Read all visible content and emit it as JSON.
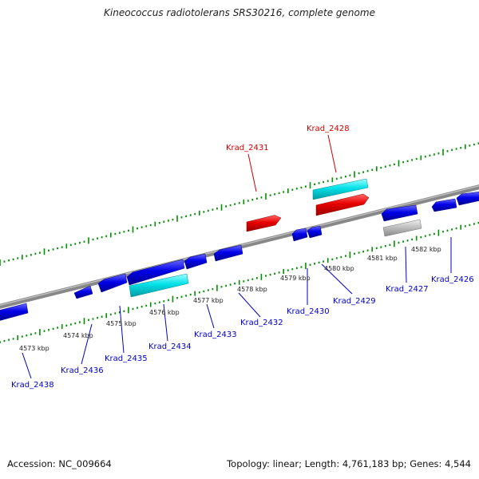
{
  "title": "Kineococcus radiotolerans SRS30216, complete genome",
  "footer": {
    "accession_label": "Accession:",
    "accession": "NC_009664",
    "topology_label": "Topology:",
    "topology": "linear",
    "length_label": "Length:",
    "length": "4,761,183 bp",
    "genes_label": "Genes:",
    "genes": "4,544"
  },
  "colors": {
    "forward_gene": "#e80000",
    "forward_gene_alt": "#00e0e8",
    "reverse_gene": "#0000e8",
    "reverse_gene_alt": "#00d0d8",
    "pseudo_gene": "#b8b8b8",
    "tick": "#009000",
    "backbone": "#808080",
    "label_forward": "#d00000",
    "label_reverse": "#0000c8"
  },
  "axis": {
    "unit": "kbp",
    "tick_labels": [
      "4573 kbp",
      "4574 kbp",
      "4575 kbp",
      "4576 kbp",
      "4577 kbp",
      "4578 kbp",
      "4579 kbp",
      "4580 kbp",
      "4581 kbp",
      "4582 kbp"
    ]
  },
  "genes": [
    {
      "name": "Krad_2431",
      "strand": "forward",
      "color_key": "forward_gene"
    },
    {
      "name": "Krad_2428",
      "strand": "forward",
      "color_key": "forward_gene"
    },
    {
      "name": "Krad_2438",
      "strand": "reverse",
      "color_key": "reverse_gene"
    },
    {
      "name": "Krad_2436",
      "strand": "reverse",
      "color_key": "reverse_gene"
    },
    {
      "name": "Krad_2435",
      "strand": "reverse",
      "color_key": "reverse_gene"
    },
    {
      "name": "Krad_2434",
      "strand": "reverse",
      "color_key": "reverse_gene_alt"
    },
    {
      "name": "Krad_2433",
      "strand": "reverse",
      "color_key": "reverse_gene"
    },
    {
      "name": "Krad_2432",
      "strand": "reverse",
      "color_key": "reverse_gene"
    },
    {
      "name": "Krad_2430",
      "strand": "reverse",
      "color_key": "reverse_gene"
    },
    {
      "name": "Krad_2429",
      "strand": "reverse",
      "color_key": "reverse_gene"
    },
    {
      "name": "Krad_2427",
      "strand": "reverse",
      "color_key": "pseudo_gene"
    },
    {
      "name": "Krad_2426",
      "strand": "reverse",
      "color_key": "reverse_gene"
    }
  ]
}
